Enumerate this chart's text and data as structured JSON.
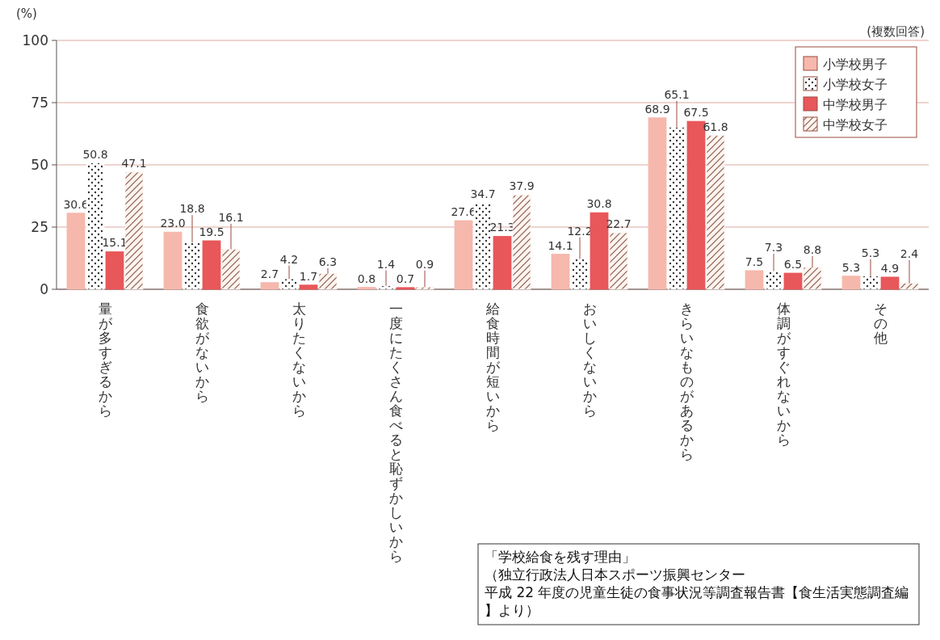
{
  "chart_data": {
    "type": "bar",
    "ylabel": "(%)",
    "categories": [
      "量が多すぎるから",
      "食欲がないから",
      "太りたくないから",
      "一度にたくさん食べると恥ずかしいから",
      "給食時間が短いから",
      "おいしくないから",
      "きらいなものがあるから",
      "体調がすぐれないから",
      "その他"
    ],
    "series": [
      {
        "name": "小学校男子",
        "color": "#f6b8ac",
        "values": [
          30.6,
          23.0,
          2.7,
          0.8,
          27.6,
          14.1,
          68.9,
          7.5,
          5.3
        ],
        "value_labels": [
          "30.6",
          "23.0",
          "2.7",
          "0.8",
          "27.6",
          "14.1",
          "68.9",
          "7.5",
          "5.3"
        ]
      },
      {
        "name": "小学校女子",
        "color": "#ffffff",
        "values": [
          50.8,
          18.8,
          4.2,
          1.4,
          34.7,
          12.2,
          65.1,
          7.3,
          5.3
        ],
        "value_labels": [
          "50.8",
          "18.8",
          "4.2",
          "1.4",
          "34.7",
          "12.2",
          "65.1",
          "7.3",
          "5.3"
        ]
      },
      {
        "name": "中学校男子",
        "color": "#e8575a",
        "values": [
          15.1,
          19.5,
          1.7,
          0.7,
          21.3,
          30.8,
          67.5,
          6.5,
          4.9
        ],
        "value_labels": [
          "15.1",
          "19.5",
          "1.7",
          "0.7",
          "21.3",
          "30.8",
          "67.5",
          "6.5",
          "4.9"
        ]
      },
      {
        "name": "中学校女子",
        "color": "#fdf4f0",
        "values": [
          47.1,
          16.1,
          6.3,
          0.9,
          37.9,
          22.7,
          61.8,
          8.8,
          2.4
        ],
        "value_labels": [
          "47.1",
          "16.1",
          "6.3",
          "0.9",
          "37.9",
          "22.7",
          "61.8",
          "8.8",
          "2.4"
        ]
      }
    ],
    "ylim": [
      0,
      100
    ],
    "yticks": [
      0,
      25,
      50,
      75,
      100
    ],
    "grid": "y",
    "legend": "top right",
    "annotations": [
      "(複数回答)",
      "「学校給食を残す理由」",
      "（独立行政法人日本スポーツ振興センター",
      "平成 22 年度の児童生徒の食事状況等調査報告書【食生活実態調査編】より）"
    ]
  }
}
